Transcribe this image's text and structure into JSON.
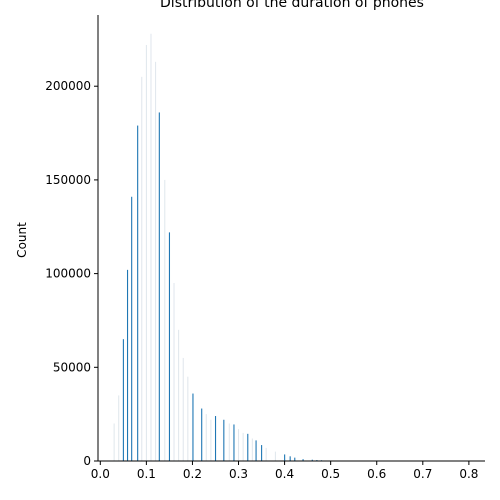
{
  "chart_data": {
    "type": "bar",
    "title": "Distribution of the duration of phones",
    "xlabel": "",
    "ylabel": "Count",
    "xlim": [
      -0.005,
      0.835
    ],
    "ylim": [
      0,
      238000
    ],
    "x_ticks": [
      "0.0",
      "0.1",
      "0.2",
      "0.3",
      "0.4",
      "0.5",
      "0.6",
      "0.7",
      "0.8"
    ],
    "y_ticks": [
      "0",
      "50000",
      "100000",
      "150000",
      "200000"
    ],
    "colors": {
      "bar": "#1f77b4",
      "faint_bar": "#dfe6ec"
    },
    "bars": [
      {
        "x": 0.05,
        "value": 65000
      },
      {
        "x": 0.059,
        "value": 102000
      },
      {
        "x": 0.068,
        "value": 141000
      },
      {
        "x": 0.081,
        "value": 179000
      },
      {
        "x": 0.128,
        "value": 186000
      },
      {
        "x": 0.15,
        "value": 122000
      },
      {
        "x": 0.201,
        "value": 36000
      },
      {
        "x": 0.22,
        "value": 28000
      },
      {
        "x": 0.25,
        "value": 24000
      },
      {
        "x": 0.268,
        "value": 22000
      },
      {
        "x": 0.29,
        "value": 19500
      },
      {
        "x": 0.32,
        "value": 14500
      },
      {
        "x": 0.338,
        "value": 11000
      },
      {
        "x": 0.35,
        "value": 8500
      },
      {
        "x": 0.4,
        "value": 3500
      },
      {
        "x": 0.412,
        "value": 2500
      },
      {
        "x": 0.422,
        "value": 1800
      },
      {
        "x": 0.44,
        "value": 1000
      },
      {
        "x": 0.46,
        "value": 700
      },
      {
        "x": 0.47,
        "value": 500
      },
      {
        "x": 0.48,
        "value": 400
      }
    ],
    "faint_bars": [
      {
        "x": 0.03,
        "value": 20000
      },
      {
        "x": 0.04,
        "value": 35000
      },
      {
        "x": 0.09,
        "value": 205000
      },
      {
        "x": 0.1,
        "value": 222000
      },
      {
        "x": 0.11,
        "value": 228000
      },
      {
        "x": 0.12,
        "value": 213000
      },
      {
        "x": 0.14,
        "value": 150000
      },
      {
        "x": 0.16,
        "value": 95000
      },
      {
        "x": 0.17,
        "value": 70000
      },
      {
        "x": 0.18,
        "value": 55000
      },
      {
        "x": 0.19,
        "value": 45000
      },
      {
        "x": 0.23,
        "value": 25000
      },
      {
        "x": 0.24,
        "value": 22000
      },
      {
        "x": 0.28,
        "value": 20000
      },
      {
        "x": 0.3,
        "value": 17000
      },
      {
        "x": 0.31,
        "value": 15000
      },
      {
        "x": 0.33,
        "value": 12000
      },
      {
        "x": 0.36,
        "value": 7000
      },
      {
        "x": 0.38,
        "value": 5000
      }
    ]
  }
}
